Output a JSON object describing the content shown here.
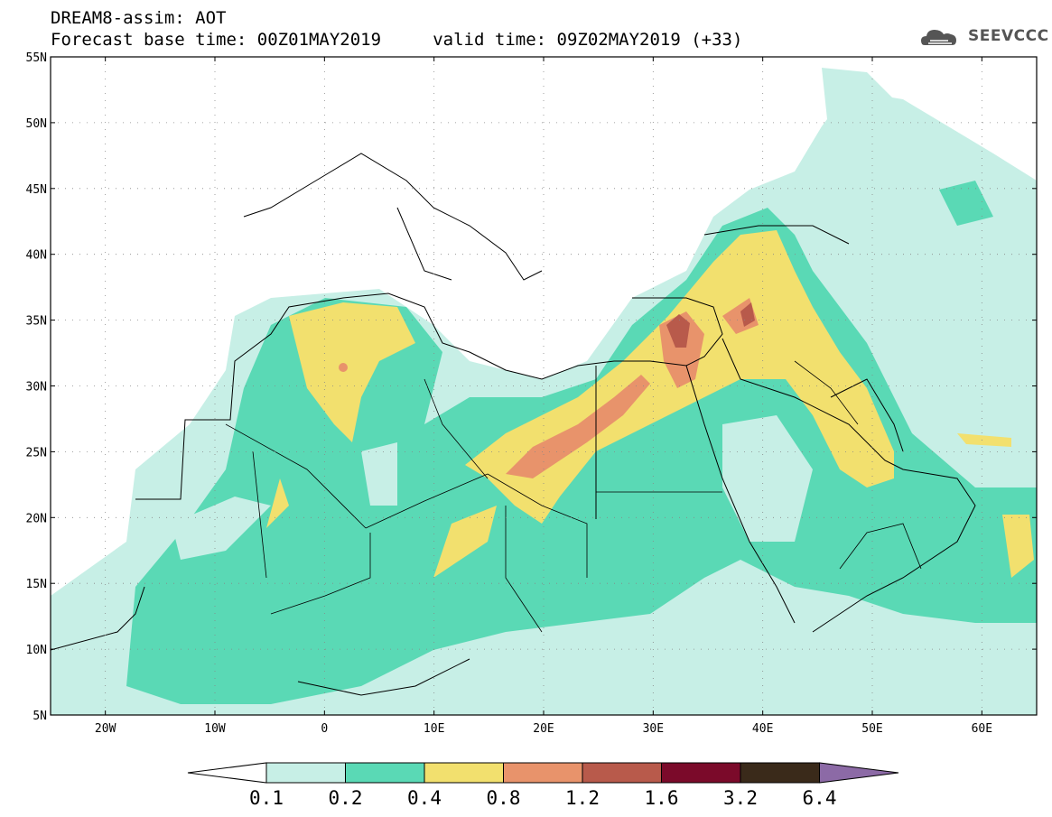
{
  "title": {
    "line1": "DREAM8-assim: AOT",
    "line2": "Forecast base time: 00Z01MAY2019     valid time: 09Z02MAY2019 (+33)"
  },
  "logo": {
    "text": "SEEVCCC",
    "icon": "cloud-icon"
  },
  "map": {
    "lon_range": [
      -25,
      65
    ],
    "lat_range": [
      5,
      55
    ],
    "lat_ticks": [
      {
        "value": 5,
        "label": "5N"
      },
      {
        "value": 10,
        "label": "10N"
      },
      {
        "value": 15,
        "label": "15N"
      },
      {
        "value": 20,
        "label": "20N"
      },
      {
        "value": 25,
        "label": "25N"
      },
      {
        "value": 30,
        "label": "30N"
      },
      {
        "value": 35,
        "label": "35N"
      },
      {
        "value": 40,
        "label": "40N"
      },
      {
        "value": 45,
        "label": "45N"
      },
      {
        "value": 50,
        "label": "50N"
      },
      {
        "value": 55,
        "label": "55N"
      }
    ],
    "lon_ticks": [
      {
        "value": -20,
        "label": "20W"
      },
      {
        "value": -10,
        "label": "10W"
      },
      {
        "value": 0,
        "label": "0"
      },
      {
        "value": 10,
        "label": "10E"
      },
      {
        "value": 20,
        "label": "20E"
      },
      {
        "value": 30,
        "label": "30E"
      },
      {
        "value": 40,
        "label": "40E"
      },
      {
        "value": 50,
        "label": "50E"
      },
      {
        "value": 60,
        "label": "60E"
      }
    ],
    "grid": true
  },
  "colorbar": {
    "levels": [
      "0.1",
      "0.2",
      "0.4",
      "0.8",
      "1.2",
      "1.6",
      "3.2",
      "6.4"
    ],
    "colors": [
      "#ffffff",
      "#c7efe6",
      "#5ad9b5",
      "#f2e06e",
      "#e8936b",
      "#b85a4b",
      "#7b0a2a",
      "#3a2a1a",
      "#8c6aa6"
    ]
  }
}
